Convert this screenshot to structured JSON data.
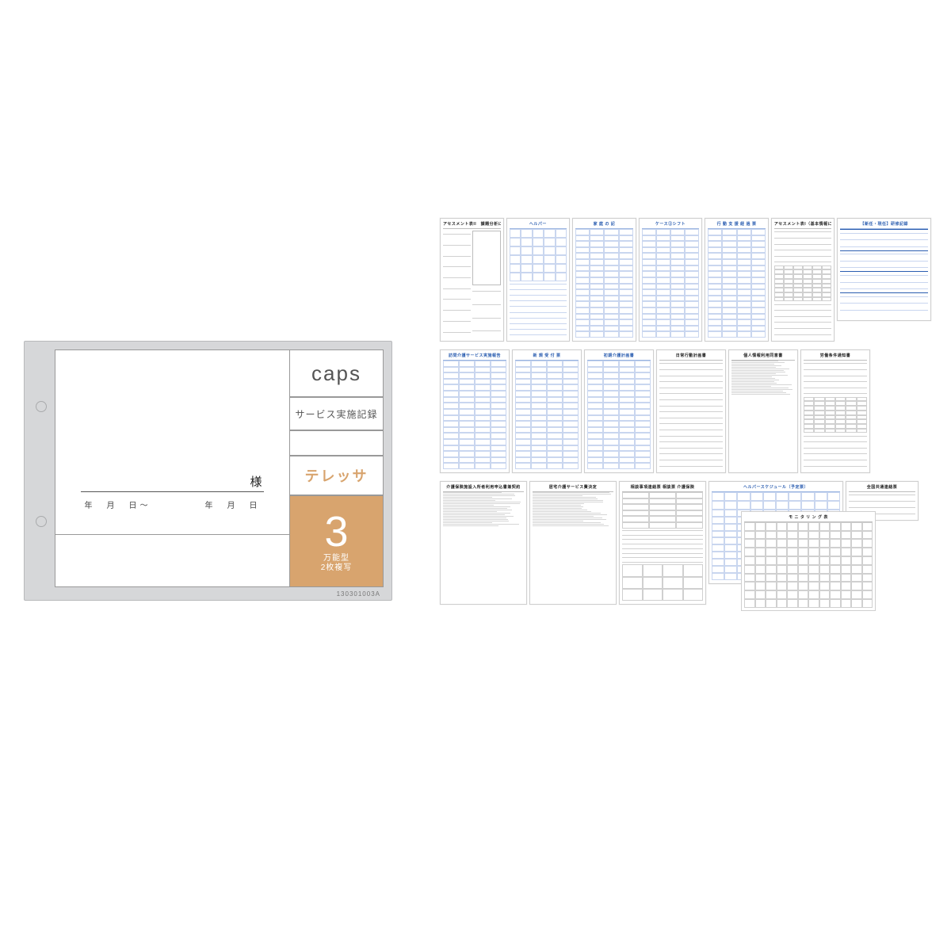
{
  "colors": {
    "page_bg": "#ffffff",
    "notebook_frame": "#d6d7d9",
    "notebook_border": "#b8b9bb",
    "rule_gray": "#999999",
    "accent": "#d8a46e",
    "series_text": "#d8a46e",
    "form_blue": "#2a5db0",
    "form_blue_light": "#c9d6ef",
    "form_gray": "#bcbcbc"
  },
  "notebook": {
    "logo": "caps",
    "subtitle": "サービス実施記録",
    "series_name": "テレッサ",
    "number": "3",
    "number_sub1": "万能型",
    "number_sub2": "2枚複写",
    "name_suffix": "様",
    "date_left": "年　月　日〜",
    "date_right": "年　月　日",
    "product_code": "130301003A"
  },
  "forms": {
    "row1": [
      {
        "title": "アセスメント表II　課題分析に関す",
        "style": "black",
        "layout": "body"
      },
      {
        "title": "ヘルパー",
        "style": "blue",
        "layout": "split"
      },
      {
        "title": "家 庭 の 記",
        "style": "blue",
        "layout": "table"
      },
      {
        "title": "ケース②シフト",
        "style": "blue",
        "layout": "table"
      },
      {
        "title": "行 動 支 援 経 過 票",
        "style": "blue",
        "layout": "table"
      },
      {
        "title": "アセスメント表I（基本情報に関）",
        "style": "black",
        "layout": "dense"
      },
      {
        "title": "【新任・現任】研修記録",
        "style": "blue",
        "layout": "sections",
        "wide": true
      }
    ],
    "row2": [
      {
        "title": "訪問介護サービス実施報告",
        "style": "blue",
        "layout": "table"
      },
      {
        "title": "新 規 受 付 票",
        "style": "blue",
        "layout": "table"
      },
      {
        "title": "初期介護計画書",
        "style": "blue",
        "layout": "table"
      },
      {
        "title": "日常行動計画書",
        "style": "black",
        "layout": "lines"
      },
      {
        "title": "個人情報利用同意書",
        "style": "black",
        "layout": "text"
      },
      {
        "title": "労働条件通知書",
        "style": "black",
        "layout": "dense"
      }
    ],
    "row3": [
      {
        "title": "介護保険施設入所者利用申込書兼契約",
        "style": "black",
        "layout": "text"
      },
      {
        "title": "居宅介護サービス費決定",
        "style": "black",
        "layout": "text"
      },
      {
        "title": "相談事項連絡票  相談票  介護保険",
        "style": "black",
        "layout": "form"
      },
      {
        "title": "ヘルパースケジュール（予定票）",
        "style": "blue",
        "layout": "schedule",
        "landscape": true
      },
      {
        "title": "全国共通連絡票",
        "style": "black",
        "layout": "mini",
        "mini": true
      }
    ],
    "overlay": {
      "title": "モ ニ タ リ ン グ 表",
      "style": "black",
      "layout": "matrix"
    }
  }
}
